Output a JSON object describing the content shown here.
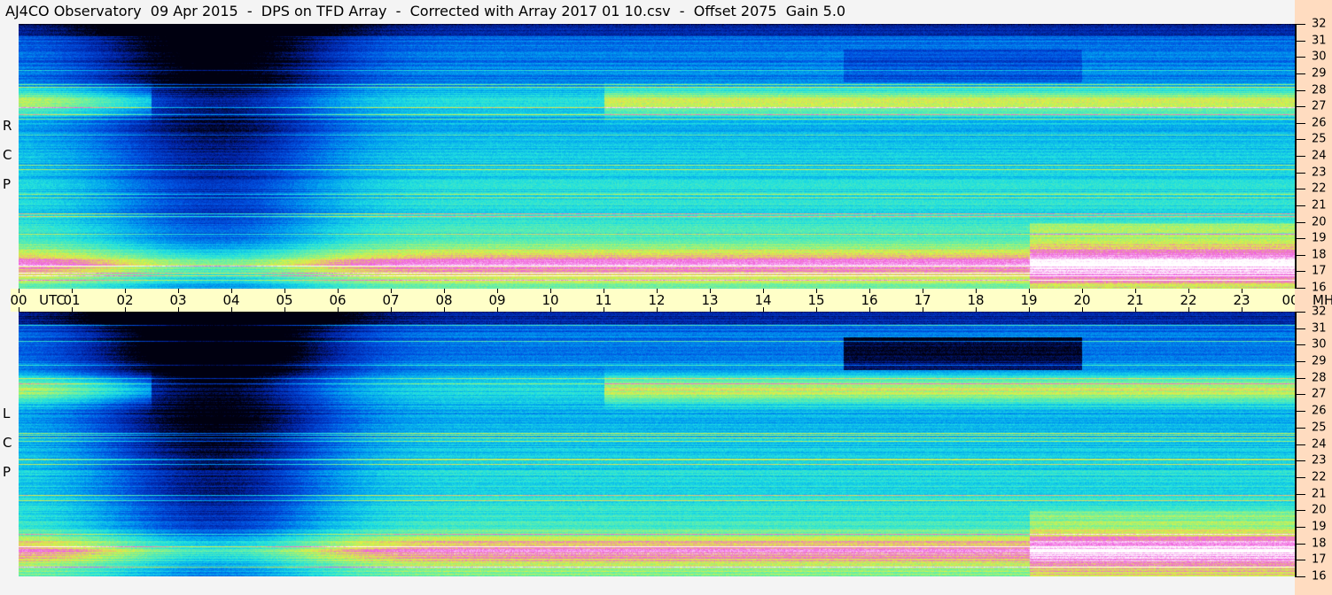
{
  "title": "AJ4CO Observatory  09 Apr 2015  -  DPS on TFD Array  -  Corrected with Array 2017 01 10.csv  -  Offset 2075  Gain 5.0",
  "chart_data": {
    "type": "heatmap",
    "x_label": "UTC",
    "y_unit": "MHz",
    "x_ticks": [
      "00",
      "01",
      "02",
      "03",
      "04",
      "05",
      "06",
      "07",
      "08",
      "09",
      "10",
      "11",
      "12",
      "13",
      "14",
      "15",
      "16",
      "17",
      "18",
      "19",
      "20",
      "21",
      "22",
      "23",
      "00"
    ],
    "xlim_hours": [
      0,
      24
    ],
    "y_ticks": [
      "32",
      "31",
      "30",
      "29",
      "28",
      "27",
      "26",
      "25",
      "24",
      "23",
      "22",
      "21",
      "20",
      "19",
      "18",
      "17",
      "16"
    ],
    "ylim_mhz": [
      16,
      32
    ],
    "panels": [
      {
        "label": [
          "R",
          "C",
          "P"
        ]
      },
      {
        "label": [
          "L",
          "C",
          "P"
        ]
      }
    ],
    "colormap": [
      "#000010",
      "#0020a0",
      "#0050e0",
      "#00a0f0",
      "#20e0e0",
      "#70f0a0",
      "#e0f040",
      "#f060e0",
      "#ffffff"
    ]
  }
}
